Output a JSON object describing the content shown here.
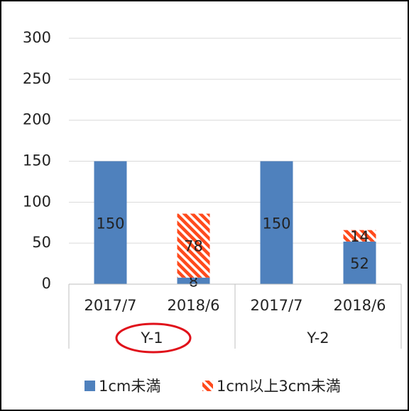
{
  "chart_data": {
    "type": "stacked_bar",
    "categories": [
      "2017/7",
      "2018/6",
      "2017/7",
      "2018/6"
    ],
    "groups": [
      "Y-1",
      "Y-2"
    ],
    "series": [
      {
        "name": "1cm未満",
        "color": "#4f81bd",
        "values": [
          150,
          8,
          150,
          52
        ]
      },
      {
        "name": "1cm以上3cm未満",
        "color": "#ff4a1c",
        "pattern": "hatch",
        "values": [
          null,
          78,
          null,
          14
        ]
      }
    ],
    "ylim": [
      0,
      300
    ],
    "yticks": [
      0,
      50,
      100,
      150,
      200,
      250,
      300
    ],
    "grid": true,
    "legend": "bottom"
  }
}
